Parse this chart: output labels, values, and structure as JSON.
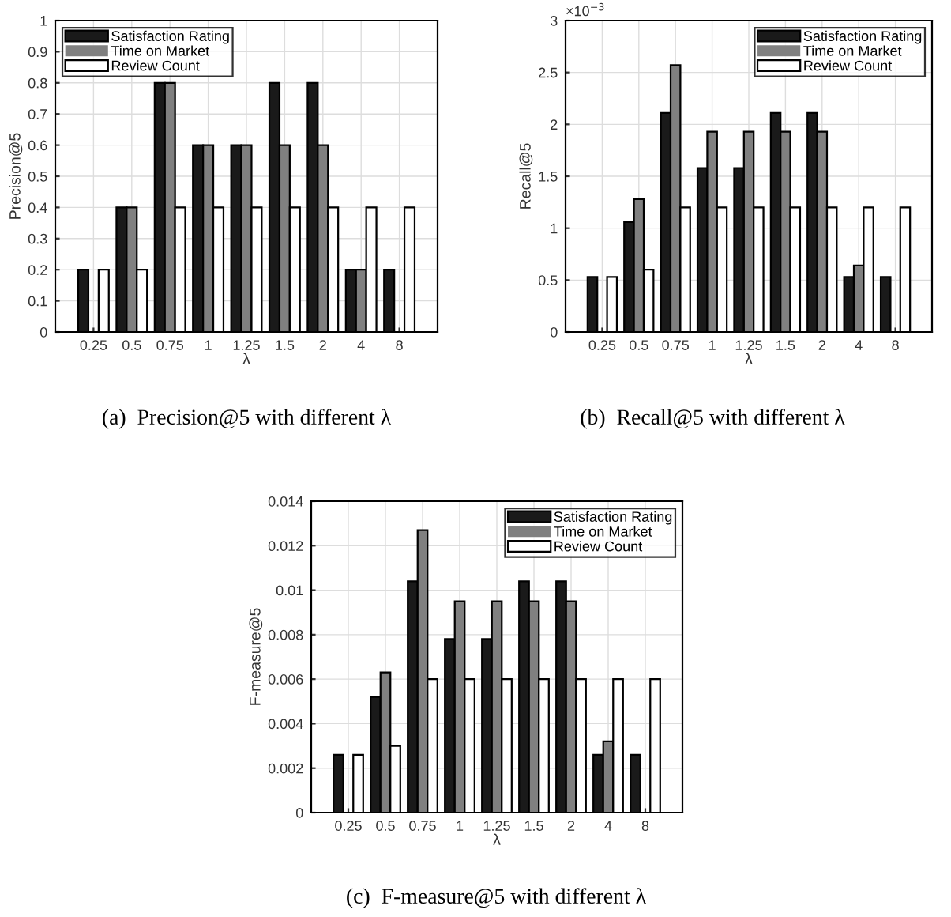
{
  "chart_data": [
    {
      "type": "bar",
      "title": "(a)  Precision@5 with different λ",
      "xlabel": "λ",
      "ylabel": "Precision@5",
      "categories": [
        "0.25",
        "0.5",
        "0.75",
        "1",
        "1.25",
        "1.5",
        "2",
        "4",
        "8"
      ],
      "series": [
        {
          "name": "Satisfaction Rating",
          "color": "#1a1a1a",
          "values": [
            0.2,
            0.4,
            0.8,
            0.6,
            0.6,
            0.8,
            0.8,
            0.2,
            0.2
          ]
        },
        {
          "name": "Time on Market",
          "color": "#808080",
          "values": [
            0,
            0.4,
            0.8,
            0.6,
            0.6,
            0.6,
            0.6,
            0.2,
            0
          ]
        },
        {
          "name": "Review Count",
          "color": "#ffffff",
          "values": [
            0.2,
            0.2,
            0.4,
            0.4,
            0.4,
            0.4,
            0.4,
            0.4,
            0.4
          ]
        }
      ],
      "ylim": [
        0,
        1
      ],
      "yticks": [
        0,
        0.1,
        0.2,
        0.3,
        0.4,
        0.5,
        0.6,
        0.7,
        0.8,
        0.9,
        1
      ],
      "grid": true,
      "legend": "top left"
    },
    {
      "type": "bar",
      "title": "(b)  Recall@5 with different λ",
      "xlabel": "λ",
      "ylabel": "Recall@5",
      "categories": [
        "0.25",
        "0.5",
        "0.75",
        "1",
        "1.25",
        "1.5",
        "2",
        "4",
        "8"
      ],
      "series": [
        {
          "name": "Satisfaction Rating",
          "color": "#1a1a1a",
          "values": [
            0.53,
            1.06,
            2.11,
            1.58,
            1.58,
            2.11,
            2.11,
            0.53,
            0.53
          ]
        },
        {
          "name": "Time on Market",
          "color": "#808080",
          "values": [
            0,
            1.28,
            2.57,
            1.93,
            1.93,
            1.93,
            1.93,
            0.64,
            0
          ]
        },
        {
          "name": "Review Count",
          "color": "#ffffff",
          "values": [
            0.53,
            0.6,
            1.2,
            1.2,
            1.2,
            1.2,
            1.2,
            1.2,
            1.2
          ]
        }
      ],
      "ylim": [
        0,
        3
      ],
      "yticks": [
        0,
        0.5,
        1,
        1.5,
        2,
        2.5,
        3
      ],
      "annotations": [
        "×10$^{−3}$"
      ],
      "grid": true,
      "legend": "top right"
    },
    {
      "type": "bar",
      "title": "(c)  F-measure@5 with different λ",
      "xlabel": "λ",
      "ylabel": "F-measure@5",
      "categories": [
        "0.25",
        "0.5",
        "0.75",
        "1",
        "1.25",
        "1.5",
        "2",
        "4",
        "8"
      ],
      "series": [
        {
          "name": "Satisfaction Rating",
          "color": "#1a1a1a",
          "values": [
            0.0026,
            0.0052,
            0.0104,
            0.0078,
            0.0078,
            0.0104,
            0.0104,
            0.0026,
            0.0026
          ]
        },
        {
          "name": "Time on Market",
          "color": "#808080",
          "values": [
            0,
            0.0063,
            0.0127,
            0.0095,
            0.0095,
            0.0095,
            0.0095,
            0.0032,
            0
          ]
        },
        {
          "name": "Review Count",
          "color": "#ffffff",
          "values": [
            0.0026,
            0.003,
            0.006,
            0.006,
            0.006,
            0.006,
            0.006,
            0.006,
            0.006
          ]
        }
      ],
      "ylim": [
        0,
        0.014
      ],
      "yticks": [
        0,
        0.002,
        0.004,
        0.006,
        0.008,
        0.01,
        0.012,
        0.014
      ],
      "grid": true,
      "legend": "top right"
    }
  ]
}
